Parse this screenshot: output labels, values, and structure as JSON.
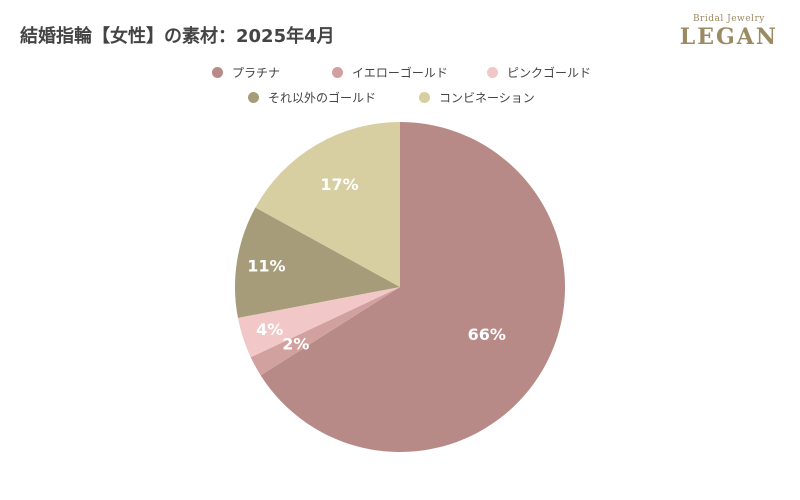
{
  "chart_data": {
    "type": "pie",
    "title": "結婚指輪【女性】の素材：2025年4月",
    "categories": [
      "プラチナ",
      "イエローゴールド",
      "ピンクゴールド",
      "それ以外のゴールド",
      "コンビネーション"
    ],
    "values": [
      66,
      2,
      4,
      11,
      17
    ],
    "labels": [
      "66%",
      "2%",
      "4%",
      "11%",
      "17%"
    ],
    "colors": [
      "#b88a87",
      "#d0a19e",
      "#f1c8c7",
      "#a69c79",
      "#d7cfa2"
    ],
    "legend_position": "top"
  },
  "logo": {
    "top": "Bridal Jewelry",
    "main": "LEGAN"
  }
}
